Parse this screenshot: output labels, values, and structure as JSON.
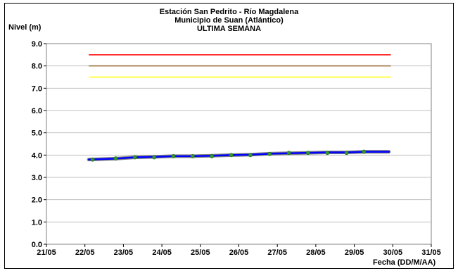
{
  "chart_data": {
    "type": "line",
    "title": "Estación San Pedrito - Río Magdalena",
    "subtitle": "Municipio de Suan (Atlántico)",
    "subtitle2": "ULTIMA SEMANA",
    "xlabel": "Fecha (DD/M/AA)",
    "ylabel": "Nivel (m)",
    "xticks": [
      "21/05",
      "22/05",
      "23/05",
      "24/05",
      "25/05",
      "26/05",
      "27/05",
      "28/05",
      "29/05",
      "30/05",
      "31/05"
    ],
    "ylim": [
      0,
      9
    ],
    "ytick_step": 1,
    "xlim": [
      "21/05",
      "31/05"
    ],
    "threshold_lines": [
      {
        "color": "#ff0000",
        "y": 8.5,
        "x": [
          22.1,
          29.95
        ]
      },
      {
        "color": "#996633",
        "y": 8.0,
        "x": [
          22.1,
          29.95
        ]
      },
      {
        "color": "#ffff00",
        "y": 7.5,
        "x": [
          22.1,
          29.95
        ]
      }
    ],
    "series": [
      {
        "color": "#0000ff",
        "x": [
          22.1,
          22.8,
          23.3,
          23.8,
          24.3,
          24.8,
          25.3,
          25.8,
          26.3,
          26.8,
          27.3,
          27.8,
          28.3,
          28.8,
          29.3,
          29.9
        ],
        "y": [
          3.8,
          3.84,
          3.9,
          3.92,
          3.95,
          3.95,
          3.97,
          4.0,
          4.02,
          4.06,
          4.08,
          4.1,
          4.12,
          4.12,
          4.15,
          4.15
        ]
      }
    ],
    "markers": {
      "color": "#339933",
      "x": [
        22.2,
        22.8,
        23.3,
        23.8,
        24.3,
        24.8,
        25.3,
        25.8,
        26.3,
        26.8,
        27.3,
        27.8,
        28.3,
        28.8,
        29.25
      ],
      "y": [
        3.8,
        3.85,
        3.9,
        3.9,
        3.95,
        3.95,
        3.95,
        4.0,
        4.0,
        4.05,
        4.1,
        4.1,
        4.1,
        4.1,
        4.15
      ]
    }
  }
}
